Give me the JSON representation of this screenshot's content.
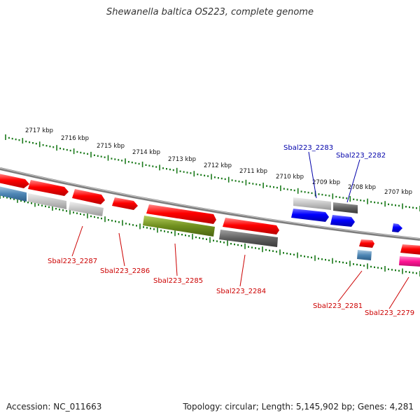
{
  "title": "Shewanella baltica OS223, complete genome",
  "footer": {
    "accession": "Accession: NC_011663",
    "topology": "Topology: circular; Length: 5,145,902 bp; Genes: 4,281"
  },
  "colors": {
    "backbone": "#7d7d7d",
    "tick": "#1a7a1a",
    "label_red": "#cc0000",
    "label_blue": "#0000aa"
  },
  "kbp_labels": [
    "2717 kbp",
    "2716 kbp",
    "2715 kbp",
    "2714 kbp",
    "2713 kbp",
    "2712 kbp",
    "2711 kbp",
    "2710 kbp",
    "2709 kbp",
    "2708 kbp",
    "2707 kbp"
  ],
  "gene_labels_top": [
    "Sbal223_2283",
    "Sbal223_2282"
  ],
  "gene_labels_bottom": [
    "Sbal223_2287",
    "Sbal223_2286",
    "Sbal223_2285",
    "Sbal223_2284",
    "Sbal223_2281",
    "Sbal223_2279"
  ]
}
